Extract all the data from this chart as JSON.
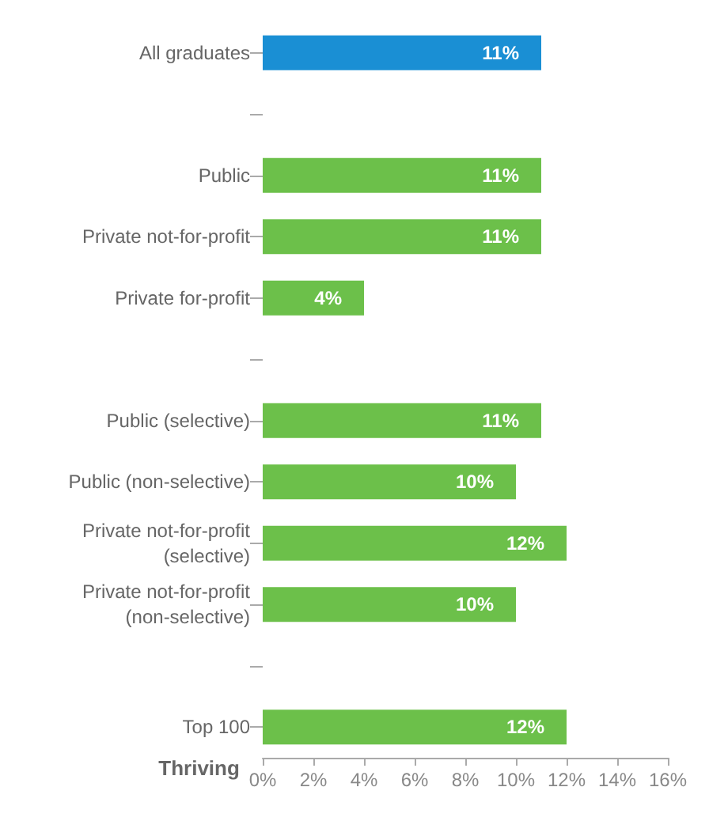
{
  "chart_data": {
    "type": "bar",
    "orientation": "horizontal",
    "categories": [
      "All graduates",
      null,
      "Public",
      "Private not-for-profit",
      "Private for-profit",
      null,
      "Public (selective)",
      "Public (non-selective)",
      "Private not-for-profit\n(selective)",
      "Private not-for-profit\n(non-selective)",
      null,
      "Top 100"
    ],
    "values": [
      11,
      null,
      11,
      11,
      4,
      null,
      11,
      10,
      12,
      10,
      null,
      12
    ],
    "colors": [
      "#1a8fd4",
      null,
      "#6cc04a",
      "#6cc04a",
      "#6cc04a",
      null,
      "#6cc04a",
      "#6cc04a",
      "#6cc04a",
      "#6cc04a",
      null,
      "#6cc04a"
    ],
    "value_labels": [
      "11%",
      null,
      "11%",
      "11%",
      "4%",
      null,
      "11%",
      "10%",
      "12%",
      "10%",
      null,
      "12%"
    ],
    "xlim": [
      0,
      16
    ],
    "xticks": [
      {
        "value": 0,
        "label": "0%"
      },
      {
        "value": 2,
        "label": "2%"
      },
      {
        "value": 4,
        "label": "4%"
      },
      {
        "value": 6,
        "label": "6%"
      },
      {
        "value": 8,
        "label": "8%"
      },
      {
        "value": 10,
        "label": "10%"
      },
      {
        "value": 12,
        "label": "12%"
      },
      {
        "value": 14,
        "label": "14%"
      },
      {
        "value": 16,
        "label": "16%"
      }
    ],
    "xlabel": "Thriving",
    "grid": false
  }
}
